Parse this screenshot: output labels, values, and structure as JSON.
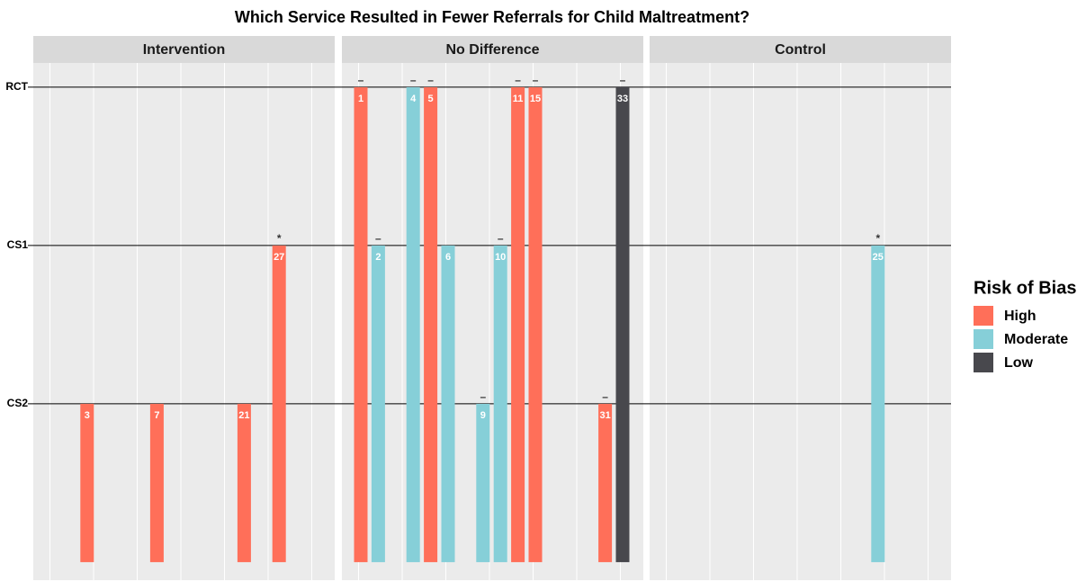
{
  "chart_data": {
    "type": "bar",
    "title": "Which Service Resulted in Fewer Referrals for Child Maltreatment?",
    "panels": [
      "Intervention",
      "No Difference",
      "Control"
    ],
    "categories": [
      "1",
      "2",
      "3",
      "4",
      "5",
      "6",
      "7",
      "9",
      "10",
      "11",
      "15",
      "21",
      "25",
      "27",
      "31",
      "33"
    ],
    "ylim": [
      -0.114,
      3.153
    ],
    "yticks": [
      {
        "value": 1,
        "label": "CS2"
      },
      {
        "value": 2,
        "label": "CS1"
      },
      {
        "value": 3,
        "label": "RCT"
      }
    ],
    "legend_title": "Risk of Bias",
    "legend_position": "right",
    "series": [
      {
        "name": "High",
        "color": "#ff6f59",
        "values": [
          [
            null,
            null,
            1,
            null,
            null,
            null,
            1,
            null,
            null,
            null,
            null,
            1,
            null,
            2,
            null,
            null
          ],
          [
            3,
            null,
            null,
            null,
            3,
            null,
            null,
            null,
            null,
            3,
            3,
            null,
            null,
            null,
            1,
            null
          ],
          [
            null,
            null,
            null,
            null,
            null,
            null,
            null,
            null,
            null,
            null,
            null,
            null,
            null,
            null,
            null,
            null
          ]
        ]
      },
      {
        "name": "Moderate",
        "color": "#86cfd8",
        "values": [
          [
            null,
            null,
            null,
            null,
            null,
            null,
            null,
            null,
            null,
            null,
            null,
            null,
            null,
            null,
            null,
            null
          ],
          [
            null,
            2,
            null,
            3,
            null,
            2,
            null,
            1,
            2,
            null,
            null,
            null,
            null,
            null,
            null,
            null
          ],
          [
            null,
            null,
            null,
            null,
            null,
            null,
            null,
            null,
            null,
            null,
            null,
            null,
            2,
            null,
            null,
            null
          ]
        ]
      },
      {
        "name": "Low",
        "color": "#48484d",
        "values": [
          [
            null,
            null,
            null,
            null,
            null,
            null,
            null,
            null,
            null,
            null,
            null,
            null,
            null,
            null,
            null,
            null
          ],
          [
            null,
            null,
            null,
            null,
            null,
            null,
            null,
            null,
            null,
            null,
            null,
            null,
            null,
            null,
            null,
            3
          ],
          [
            null,
            null,
            null,
            null,
            null,
            null,
            null,
            null,
            null,
            null,
            null,
            null,
            null,
            null,
            null,
            null
          ]
        ]
      }
    ],
    "markers": [
      [
        null,
        null,
        null,
        null,
        null,
        null,
        null,
        null,
        null,
        null,
        null,
        null,
        null,
        "*",
        null,
        null
      ],
      [
        "–",
        "–",
        null,
        "–",
        "–",
        null,
        null,
        "–",
        "–",
        "–",
        "–",
        null,
        null,
        null,
        "–",
        "–"
      ],
      [
        null,
        null,
        null,
        null,
        null,
        null,
        null,
        null,
        null,
        null,
        null,
        null,
        "*",
        null,
        null,
        null
      ]
    ]
  }
}
